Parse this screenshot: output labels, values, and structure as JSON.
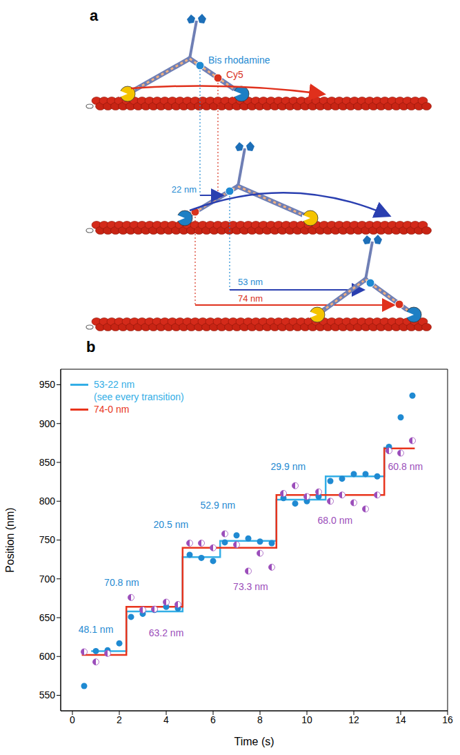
{
  "diagram": {
    "panel": "a",
    "probe_labels": {
      "rhodamine": "Bis rhodamine",
      "cy5": "Cy5"
    },
    "distances": {
      "rhodamine_first": "22 nm",
      "rhodamine_second": "53 nm",
      "cy5": "74 nm"
    }
  },
  "chart_data": {
    "type": "scatter",
    "panel": "b",
    "x_label": "Time (s)",
    "y_label": "Position (nm)",
    "xlim": [
      -0.5,
      16
    ],
    "ylim": [
      530,
      970
    ],
    "xticks": [
      0,
      2,
      4,
      6,
      8,
      10,
      12,
      14,
      16
    ],
    "yticks": [
      550,
      600,
      650,
      700,
      750,
      800,
      850,
      900,
      950
    ],
    "grid": false,
    "legend": "upper left",
    "series": [
      {
        "name": "53-22 nm",
        "legend_note": "(see every transition)",
        "type": "step",
        "color": "#33aee6",
        "step_edges": [
          0.8,
          2.3,
          4.7,
          6.3,
          8.7,
          10.8,
          13.3,
          13.6
        ],
        "values": [
          607,
          658,
          728,
          749,
          802,
          832,
          869
        ]
      },
      {
        "name": "74-0 nm",
        "type": "step",
        "color": "#e8341c",
        "step_edges": [
          0.4,
          2.3,
          4.7,
          8.7,
          13.3,
          14.6
        ],
        "values": [
          602,
          664,
          740,
          808,
          868
        ]
      }
    ],
    "points": [
      {
        "type": "scatter",
        "marker": "circle",
        "color": "#1f8ad2",
        "x": [
          0.5,
          1.0,
          1.5,
          2.0,
          2.5,
          3.0,
          3.5,
          4.0,
          4.5,
          5.0,
          5.5,
          6.0,
          6.5,
          7.0,
          7.5,
          8.0,
          8.5,
          9.0,
          9.5,
          10.0,
          10.5,
          11.0,
          11.5,
          12.0,
          12.5,
          13.0,
          13.5,
          14.0,
          14.5
        ],
        "values": [
          562,
          607,
          608,
          617,
          651,
          655,
          660,
          664,
          662,
          731,
          727,
          723,
          747,
          756,
          752,
          748,
          746,
          804,
          797,
          800,
          806,
          826,
          829,
          835,
          835,
          832,
          870,
          908,
          936
        ]
      },
      {
        "type": "scatter",
        "marker": "half",
        "color": "#9b4dba",
        "x": [
          0.5,
          1.0,
          1.5,
          2.5,
          3.0,
          3.5,
          4.0,
          4.5,
          5.0,
          5.5,
          6.0,
          6.5,
          7.0,
          7.5,
          8.0,
          8.5,
          9.0,
          9.5,
          10.0,
          10.5,
          11.0,
          11.5,
          12.0,
          12.5,
          13.0,
          13.5,
          14.0,
          14.5
        ],
        "values": [
          606,
          593,
          604,
          676,
          660,
          661,
          670,
          667,
          746,
          746,
          740,
          758,
          744,
          710,
          733,
          715,
          810,
          820,
          806,
          812,
          800,
          808,
          798,
          790,
          808,
          865,
          862,
          878
        ]
      }
    ],
    "annotations": [
      {
        "x": 1.0,
        "y": 635,
        "text": "48.1 nm",
        "color": "#1f8ad2"
      },
      {
        "x": 2.1,
        "y": 695,
        "text": "70.8 nm",
        "color": "#1f8ad2"
      },
      {
        "x": 4.2,
        "y": 770,
        "text": "20.5 nm",
        "color": "#1f8ad2"
      },
      {
        "x": 6.2,
        "y": 795,
        "text": "52.9 nm",
        "color": "#1f8ad2"
      },
      {
        "x": 9.2,
        "y": 845,
        "text": "29.9 nm",
        "color": "#1f8ad2"
      },
      {
        "x": 4.0,
        "y": 630,
        "text": "63.2 nm",
        "color": "#9b4dba"
      },
      {
        "x": 7.6,
        "y": 690,
        "text": "73.3 nm",
        "color": "#9b4dba"
      },
      {
        "x": 11.2,
        "y": 775,
        "text": "68.0 nm",
        "color": "#9b4dba"
      },
      {
        "x": 14.2,
        "y": 845,
        "text": "60.8 nm",
        "color": "#9b4dba"
      }
    ]
  }
}
